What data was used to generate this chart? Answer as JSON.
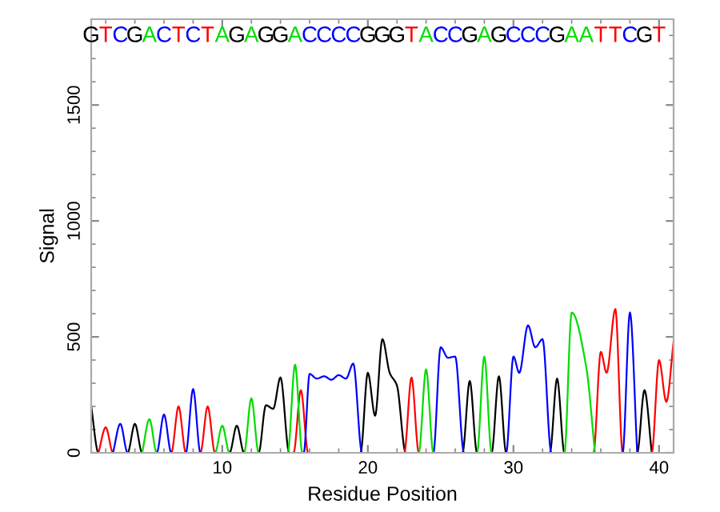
{
  "chart_data": {
    "type": "line",
    "xlabel": "Residue Position",
    "ylabel": "Signal",
    "xlim": [
      1,
      41
    ],
    "ylim": [
      0,
      1870
    ],
    "xticks": [
      10,
      20,
      30,
      40
    ],
    "yticks": [
      0,
      500,
      1000,
      1500
    ],
    "grid": false,
    "marker": "none",
    "line_style": "solid",
    "series": [
      {
        "color": "#000000",
        "x": [
          1,
          1.5,
          3.5,
          4,
          4.5,
          10.5,
          11,
          11.5,
          12.5,
          13,
          13.5,
          14,
          14.6,
          19.5,
          20,
          20.5,
          21,
          21.5,
          22,
          22.6,
          26.5,
          27,
          27.5,
          28.5,
          29,
          29.5,
          32.5,
          33,
          33.5,
          38.5,
          39,
          39.5
        ],
        "values": [
          200,
          0,
          0,
          125,
          0,
          0,
          117,
          0,
          0,
          205,
          190,
          325,
          0,
          0,
          345,
          160,
          490,
          345,
          290,
          0,
          0,
          310,
          0,
          0,
          330,
          0,
          0,
          320,
          0,
          0,
          270,
          0
        ]
      },
      {
        "color": "#ff0000",
        "x": [
          1.5,
          2,
          2.5,
          6.5,
          7,
          7.5,
          8.5,
          9,
          9.5,
          14.9,
          15.4,
          15.9,
          22.5,
          23,
          23.5,
          35.5,
          36,
          36.4,
          37,
          37.5,
          39.5,
          40,
          40.5,
          41
        ],
        "values": [
          0,
          110,
          0,
          0,
          200,
          0,
          0,
          200,
          0,
          0,
          270,
          0,
          0,
          325,
          0,
          0,
          435,
          345,
          620,
          0,
          0,
          400,
          220,
          480
        ]
      },
      {
        "color": "#0000ff",
        "x": [
          2.5,
          3,
          3.5,
          5.5,
          6,
          6.5,
          7.5,
          8,
          8.5,
          15.6,
          16,
          16.5,
          17,
          17.5,
          18,
          18.5,
          19,
          19.6,
          24.5,
          25,
          25.5,
          26,
          26.6,
          29.5,
          30,
          30.4,
          31,
          31.5,
          32,
          32.6,
          37.5,
          38,
          38.5
        ],
        "values": [
          0,
          125,
          0,
          0,
          165,
          0,
          0,
          275,
          0,
          0,
          340,
          320,
          330,
          315,
          335,
          320,
          385,
          0,
          0,
          455,
          410,
          415,
          0,
          0,
          415,
          345,
          550,
          455,
          490,
          0,
          0,
          605,
          0
        ]
      },
      {
        "color": "#00dd00",
        "x": [
          4.5,
          5,
          5.5,
          9.5,
          10,
          10.5,
          11.5,
          12,
          12.5,
          14.5,
          15,
          15.5,
          23.5,
          24,
          24.5,
          27.5,
          28,
          28.5,
          33.5,
          34,
          35,
          35.6
        ],
        "values": [
          0,
          145,
          0,
          0,
          117,
          0,
          0,
          235,
          0,
          0,
          380,
          0,
          0,
          360,
          0,
          0,
          415,
          0,
          0,
          605,
          370,
          0
        ]
      }
    ],
    "annotations": [
      "G",
      "T",
      "C",
      "G",
      "A",
      "C",
      "T",
      "C",
      "T",
      "A",
      "G",
      "A",
      "G",
      "G",
      "A",
      "C",
      "C",
      "C",
      "C",
      "G",
      "G",
      "G",
      "T",
      "A",
      "C",
      "C",
      "G",
      "A",
      "G",
      "C",
      "C",
      "C",
      "G",
      "A",
      "A",
      "T",
      "T",
      "C",
      "G",
      "T"
    ]
  }
}
